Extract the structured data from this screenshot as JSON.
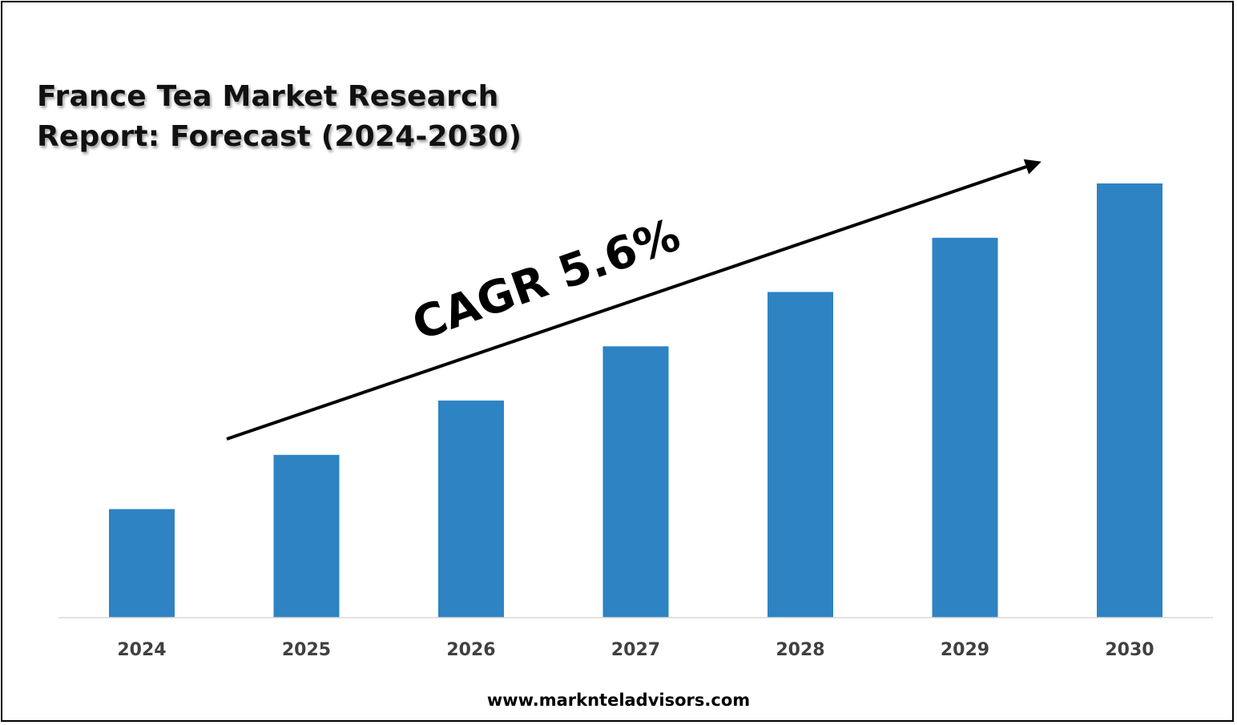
{
  "title_line1": "France Tea Market Research",
  "title_line2": "Report: Forecast (2024-2030)",
  "annotation": "CAGR 5.6%",
  "footer": "www.marknteladvisors.com",
  "colors": {
    "bar": "#2E83C3",
    "axis": "#D9D9D9",
    "text": "#404040",
    "arrow": "#000000"
  },
  "chart_data": {
    "type": "bar",
    "title": "France Tea Market Research Report: Forecast (2024-2030)",
    "categories": [
      "2024",
      "2025",
      "2026",
      "2027",
      "2028",
      "2029",
      "2030"
    ],
    "values": [
      1.0,
      1.5,
      2.0,
      2.5,
      3.0,
      3.5,
      4.0
    ],
    "value_note": "relative bar heights (no y-axis values printed)",
    "ylim": [
      0,
      4.2
    ],
    "xlabel": "",
    "ylabel": "",
    "grid": false,
    "legend": "none"
  }
}
